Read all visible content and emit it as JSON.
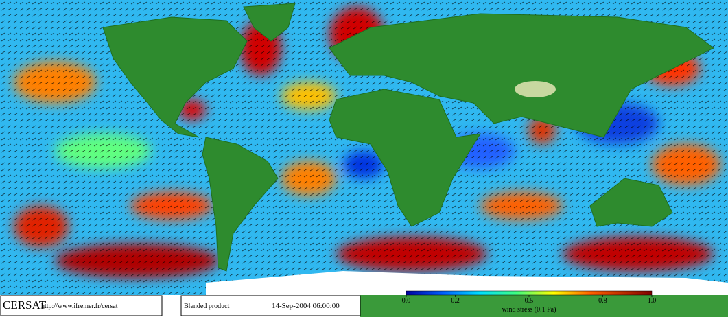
{
  "footer": {
    "logo": "CERSAT",
    "url": "http://www.ifremer.fr/cersat",
    "product": "Blended product",
    "datetime": "14-Sep-2004 06:00:00"
  },
  "colorbar": {
    "label": "wind stress (0.1 Pa)",
    "range": [
      0,
      1
    ],
    "ticks": [
      {
        "value": 0,
        "label": "0.0"
      },
      0.2,
      0.5,
      0.8,
      {
        "value": 1,
        "label": "1.0"
      }
    ]
  }
}
